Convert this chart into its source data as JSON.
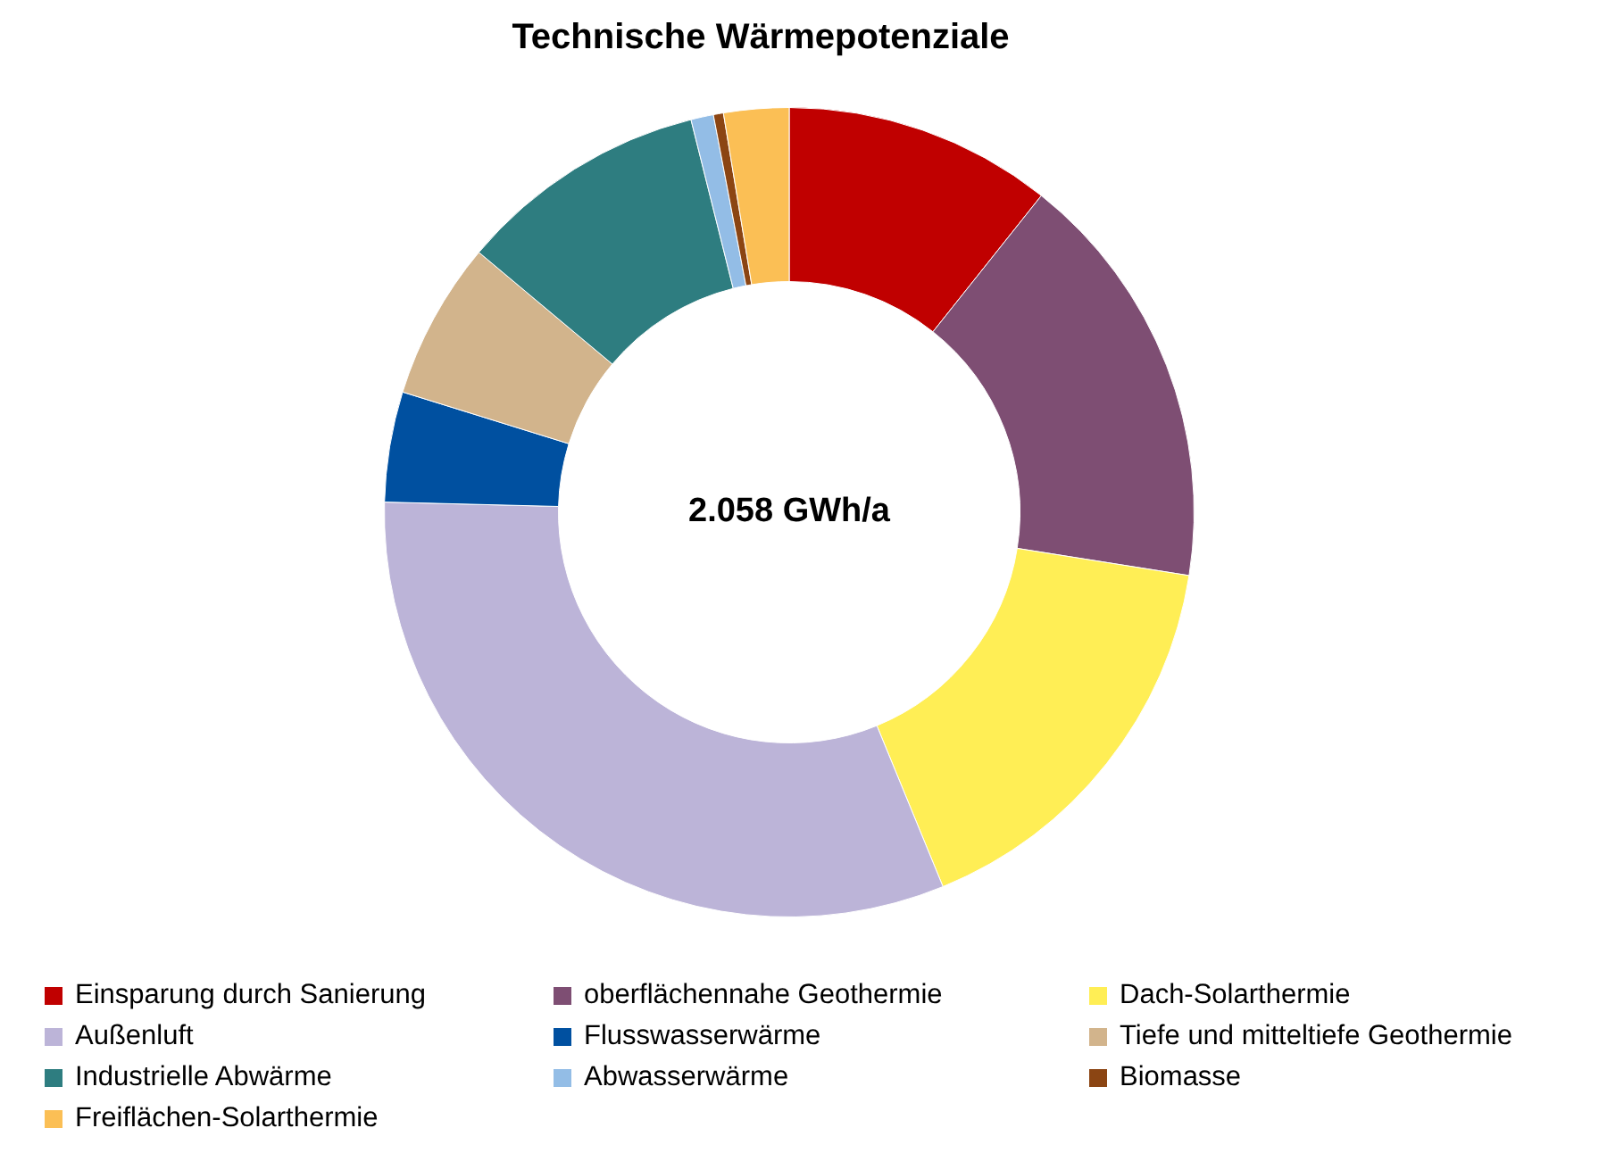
{
  "chart_data": {
    "type": "donut",
    "title": "Technische Wärmepotenziale",
    "categories": [
      "Einsparung durch Sanierung",
      "oberflächennahe Geothermie",
      "Dach-Solarthermie",
      "Außenluft",
      "Flusswasserwärme",
      "Tiefe und mitteltiefe Geothermie",
      "Industrielle Abwärme",
      "Abwasserwärme",
      "Biomasse",
      "Freiflächen-Solarthermie"
    ],
    "values": [
      10.7,
      16.8,
      16.3,
      31.6,
      4.4,
      6.3,
      10.0,
      0.9,
      0.4,
      2.6
    ],
    "colors": [
      "#c00000",
      "#7e4e73",
      "#ffee55",
      "#bcb4d8",
      "#0050a0",
      "#d2b48c",
      "#2e7d80",
      "#93bde6",
      "#8b4513",
      "#fbbf55"
    ],
    "annotations": [
      "2.058 GWh/a"
    ],
    "legend": "bottom"
  }
}
